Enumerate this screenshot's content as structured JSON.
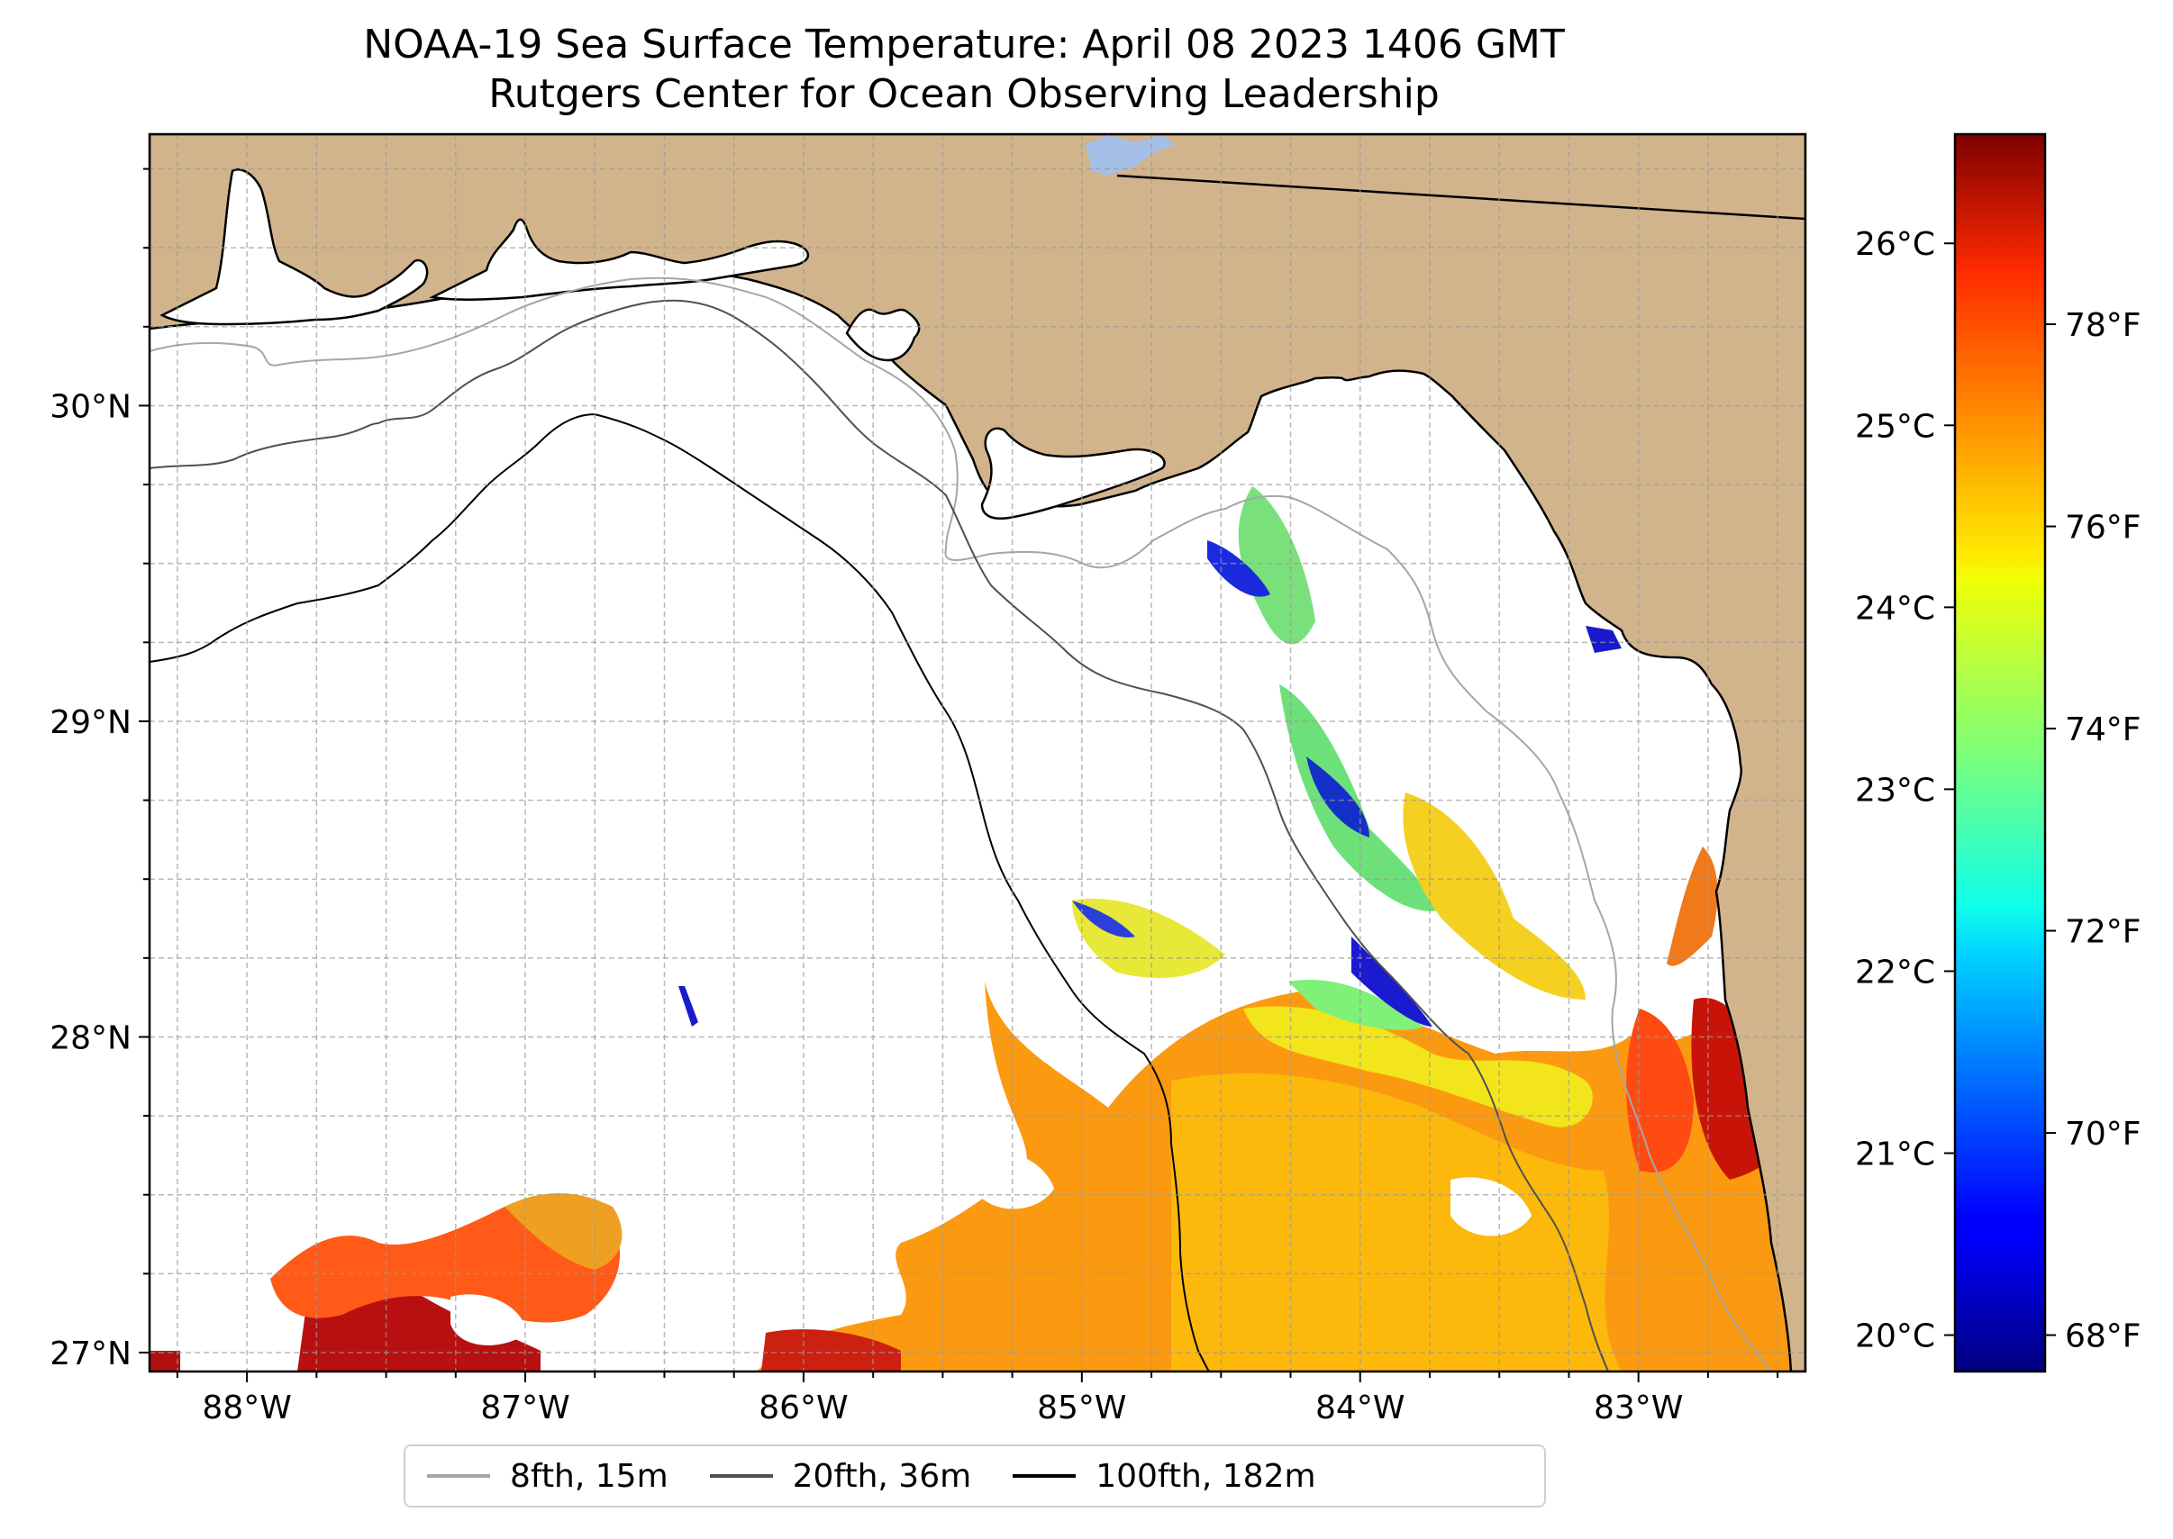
{
  "title": {
    "line1": "NOAA-19 Sea Surface Temperature: April 08 2023 1406 GMT",
    "line2": "Rutgers Center for Ocean Observing Leadership"
  },
  "map": {
    "lon_range": [
      -88.35,
      -82.4
    ],
    "lat_range": [
      26.94,
      30.86
    ],
    "longitude_ticks": [
      {
        "value": -88,
        "label": "88°W"
      },
      {
        "value": -87,
        "label": "87°W"
      },
      {
        "value": -86,
        "label": "86°W"
      },
      {
        "value": -85,
        "label": "85°W"
      },
      {
        "value": -84,
        "label": "84°W"
      },
      {
        "value": -83,
        "label": "83°W"
      }
    ],
    "latitude_ticks": [
      {
        "value": 27,
        "label": "27°N"
      },
      {
        "value": 28,
        "label": "28°N"
      },
      {
        "value": 29,
        "label": "29°N"
      },
      {
        "value": 30,
        "label": "30°N"
      }
    ],
    "gridlines": true,
    "land_color": "#d2b48c",
    "water_color": "#ffffff",
    "lake_color": "#a5c0e6"
  },
  "colorbar": {
    "colormap": "jet",
    "celsius_range": [
      19.8,
      26.6
    ],
    "celsius_ticks": [
      {
        "value": 20,
        "label": "20°C"
      },
      {
        "value": 21,
        "label": "21°C"
      },
      {
        "value": 22,
        "label": "22°C"
      },
      {
        "value": 23,
        "label": "23°C"
      },
      {
        "value": 24,
        "label": "24°C"
      },
      {
        "value": 25,
        "label": "25°C"
      },
      {
        "value": 26,
        "label": "26°C"
      }
    ],
    "fahrenheit_ticks": [
      {
        "value": 68,
        "label": "68°F"
      },
      {
        "value": 70,
        "label": "70°F"
      },
      {
        "value": 72,
        "label": "72°F"
      },
      {
        "value": 74,
        "label": "74°F"
      },
      {
        "value": 76,
        "label": "76°F"
      },
      {
        "value": 78,
        "label": "78°F"
      }
    ]
  },
  "legend": {
    "items": [
      {
        "label": "8fth, 15m",
        "color": "#a6a6a6"
      },
      {
        "label": "20fth, 36m",
        "color": "#505050"
      },
      {
        "label": "100fth, 182m",
        "color": "#000000"
      }
    ]
  }
}
